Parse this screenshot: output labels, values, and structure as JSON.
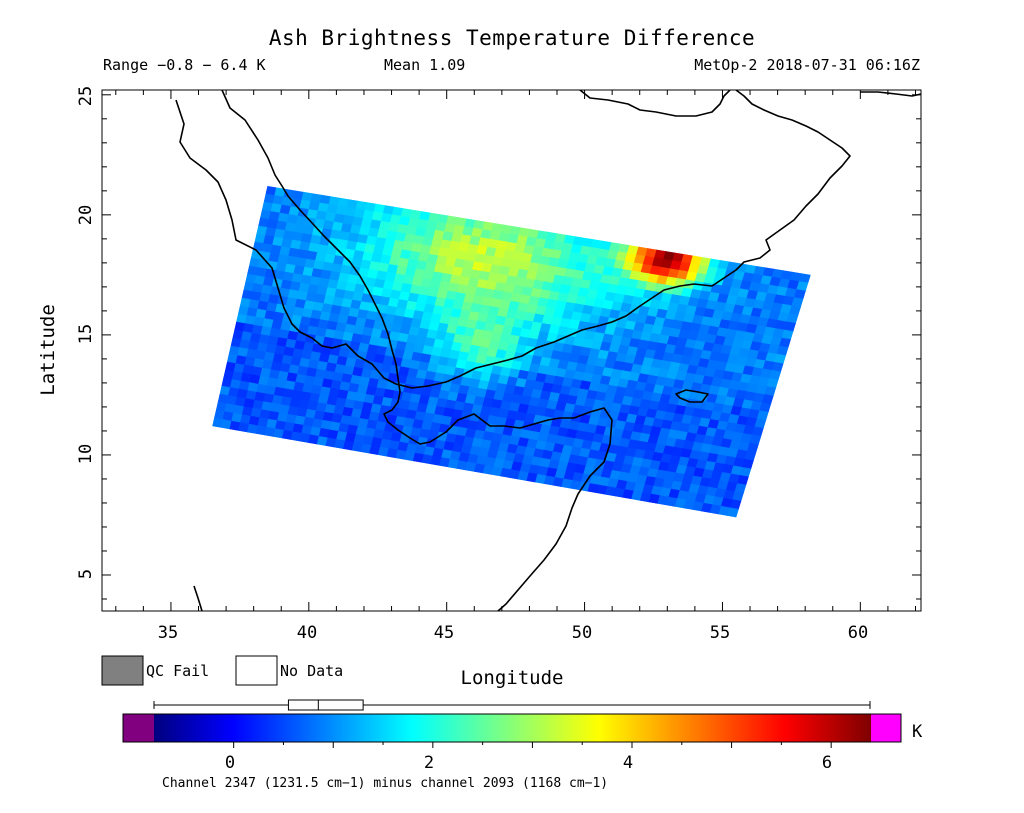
{
  "title": "Ash Brightness Temperature Difference",
  "header": {
    "range": "Range −0.8 − 6.4 K",
    "mean": "Mean 1.09",
    "satellite_time": "MetOp-2 2018-07-31 06:16Z"
  },
  "map": {
    "xlabel": "Longitude",
    "ylabel": "Latitude",
    "x_ticks": [
      "35",
      "40",
      "45",
      "50",
      "55",
      "60"
    ],
    "y_ticks": [
      "5",
      "10",
      "15",
      "20",
      "25"
    ],
    "lon_range": [
      32.5,
      62.2
    ],
    "lat_range": [
      3.5,
      25.2
    ],
    "swath_corners": {
      "nw": [
        38.5,
        21.2
      ],
      "ne": [
        58.2,
        17.5
      ],
      "se": [
        55.5,
        7.4
      ],
      "sw": [
        36.5,
        11.2
      ]
    },
    "hotspot": {
      "lon": 53.0,
      "lat": 18.1,
      "value": 6.4
    }
  },
  "legend": {
    "qc_fail": "QC Fail",
    "no_data": "No Data",
    "qc_fail_color": "#808080",
    "no_data_color": "#ffffff"
  },
  "colorbar": {
    "ticks": [
      "0",
      "2",
      "4",
      "6"
    ],
    "unit": "K",
    "caption": "Channel 2347 (1231.5 cm−1) minus channel 2093 (1168 cm−1)",
    "vmin": -0.8,
    "vmax": 6.4,
    "box_q1": 0.55,
    "box_median": 0.85,
    "box_q3": 1.3,
    "under_color": "#800080",
    "over_color": "#ff00ff"
  }
}
